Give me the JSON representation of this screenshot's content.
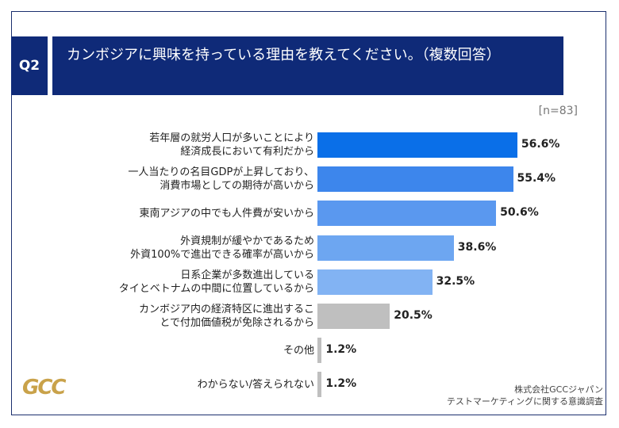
{
  "chart_data": {
    "type": "bar",
    "orientation": "horizontal",
    "question_label": "Q2",
    "title": "カンボジアに興味を持っている理由を教えてください。（複数回答）",
    "sample_size": "[n=83]",
    "categories": [
      "若年層の就労人口が多いことにより\n経済成長において有利だから",
      "一人当たりの名目GDPが上昇しており、\n消費市場としての期待が高いから",
      "東南アジアの中でも人件費が安いから",
      "外資規制が緩やかであるため\n外資100%で進出できる確率が高いから",
      "日系企業が多数進出している\nタイとベトナムの中間に位置しているから",
      "カンボジア内の経済特区に進出するこ\nとで付加価値税が免除されるから",
      "その他",
      "わからない/答えられない"
    ],
    "values": [
      56.6,
      55.4,
      50.6,
      38.6,
      32.5,
      20.5,
      1.2,
      1.2
    ],
    "value_labels": [
      "56.6%",
      "55.4%",
      "50.6%",
      "38.6%",
      "32.5%",
      "20.5%",
      "1.2%",
      "1.2%"
    ],
    "colors": [
      "#0a6fe8",
      "#3d86ec",
      "#5a98ef",
      "#6da6f1",
      "#82b3f3",
      "#bfbfbf",
      "#bfbfbf",
      "#bfbfbf"
    ],
    "logo": "GCC",
    "source": "株式会社GCCジャパン\nテストマーケティングに関する意識調査"
  }
}
